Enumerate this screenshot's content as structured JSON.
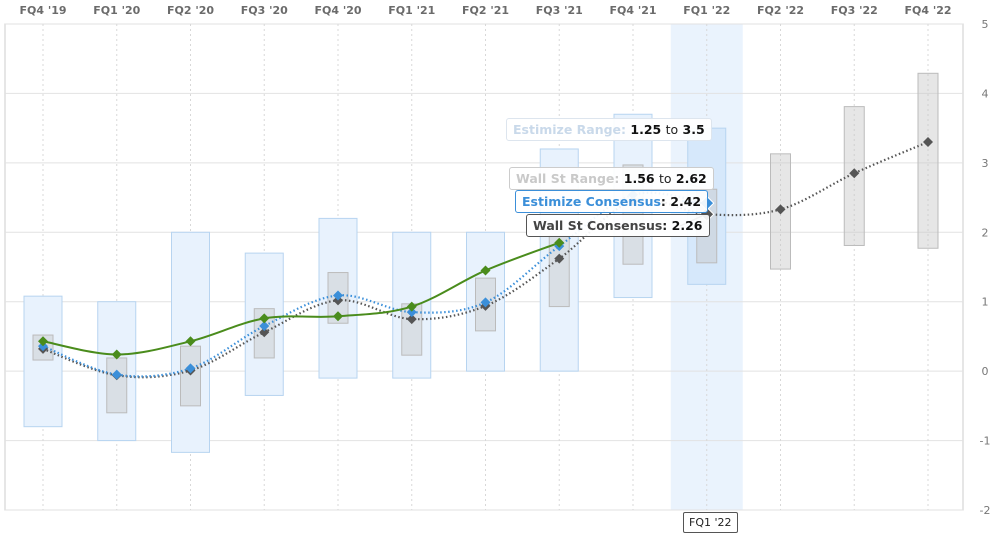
{
  "chart_data": {
    "type": "line",
    "categories": [
      "FQ4 '19",
      "FQ1 '20",
      "FQ2 '20",
      "FQ3 '20",
      "FQ4 '20",
      "FQ1 '21",
      "FQ2 '21",
      "FQ3 '21",
      "FQ4 '21",
      "FQ1 '22",
      "FQ2 '22",
      "FQ3 '22",
      "FQ4 '22"
    ],
    "yticks": [
      5,
      4,
      3,
      2,
      1,
      0,
      -1,
      -2
    ],
    "ylim": [
      -2,
      5
    ],
    "grid": true,
    "highlighted_category": "FQ1 '22",
    "series": [
      {
        "key": "actual",
        "type": "line",
        "color": "#4a8c1c",
        "values": [
          0.43,
          0.24,
          0.43,
          0.76,
          0.79,
          0.93,
          1.45,
          1.85,
          null,
          null,
          null,
          null,
          null
        ]
      },
      {
        "key": "estimize_consensus",
        "type": "dotted-line",
        "color": "#3b8fd9",
        "values": [
          0.36,
          -0.05,
          0.04,
          0.65,
          1.09,
          0.85,
          0.99,
          1.8,
          2.54,
          2.42,
          null,
          null,
          null
        ]
      },
      {
        "key": "wallst_consensus",
        "type": "dotted-line",
        "color": "#555555",
        "values": [
          0.32,
          -0.06,
          0.01,
          0.56,
          1.02,
          0.75,
          0.94,
          1.62,
          2.45,
          2.26,
          2.33,
          2.85,
          3.3
        ]
      },
      {
        "key": "estimize_range",
        "type": "range",
        "color": "#cfe3f7",
        "low": [
          -0.8,
          -1.0,
          -1.17,
          -0.35,
          -0.1,
          -0.1,
          0,
          0,
          1.06,
          1.25,
          null,
          null,
          null
        ],
        "high": [
          1.08,
          1.0,
          2.0,
          1.7,
          2.2,
          2.0,
          2.0,
          3.2,
          3.7,
          3.5,
          null,
          null,
          null
        ]
      },
      {
        "key": "wallst_range",
        "type": "range",
        "color": "#d9d9d9",
        "low": [
          0.16,
          -0.6,
          -0.5,
          0.19,
          0.69,
          0.23,
          0.58,
          0.93,
          1.54,
          1.56,
          1.47,
          1.81,
          1.77
        ],
        "high": [
          0.52,
          0.19,
          0.36,
          0.9,
          1.42,
          0.97,
          1.34,
          1.95,
          2.97,
          2.62,
          3.13,
          3.81,
          4.29
        ]
      }
    ]
  },
  "tooltip": {
    "estimize_range_label": "Estimize Range:",
    "estimize_range_low": "1.25",
    "estimize_range_high": "3.5",
    "wallst_range_label": "Wall St Range:",
    "wallst_range_low": "1.56",
    "wallst_range_high": "2.62",
    "estimize_consensus_label": "Estimize Consensus",
    "estimize_consensus_value": "2.42",
    "wallst_consensus_label": "Wall St Consensus",
    "wallst_consensus_value": "2.26",
    "to": "to",
    "x_label": "FQ1 '22"
  }
}
